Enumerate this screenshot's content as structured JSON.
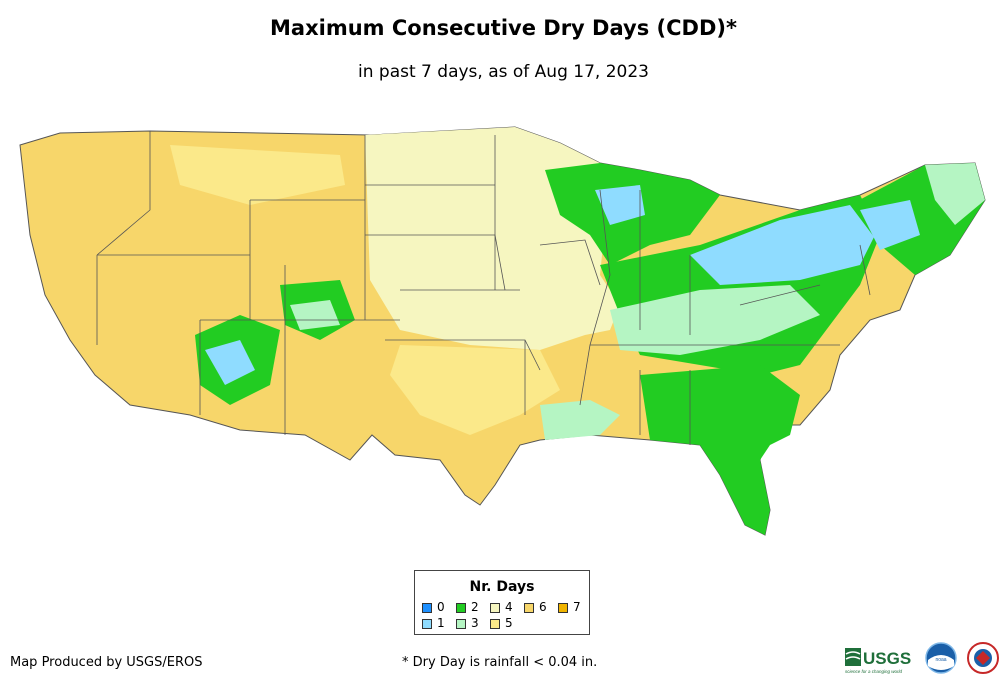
{
  "title": "Maximum Consecutive Dry Days (CDD)*",
  "subtitle": "in past 7 days, as of Aug 17, 2023",
  "legend": {
    "title": "Nr. Days",
    "items": [
      {
        "label": "0",
        "color": "#1e90ff"
      },
      {
        "label": "1",
        "color": "#8fdcff"
      },
      {
        "label": "2",
        "color": "#22cc22"
      },
      {
        "label": "3",
        "color": "#b5f5c3"
      },
      {
        "label": "4",
        "color": "#f6f6c0"
      },
      {
        "label": "5",
        "color": "#fbe98a"
      },
      {
        "label": "6",
        "color": "#f7d66a"
      },
      {
        "label": "7",
        "color": "#f0b400"
      }
    ]
  },
  "footer": {
    "producer": "Map Produced by USGS/EROS",
    "note": "* Dry Day is rainfall < 0.04 in."
  },
  "logos": {
    "usgs": "USGS",
    "usgs_tagline": "science for a changing world",
    "noaa": "noaa"
  }
}
